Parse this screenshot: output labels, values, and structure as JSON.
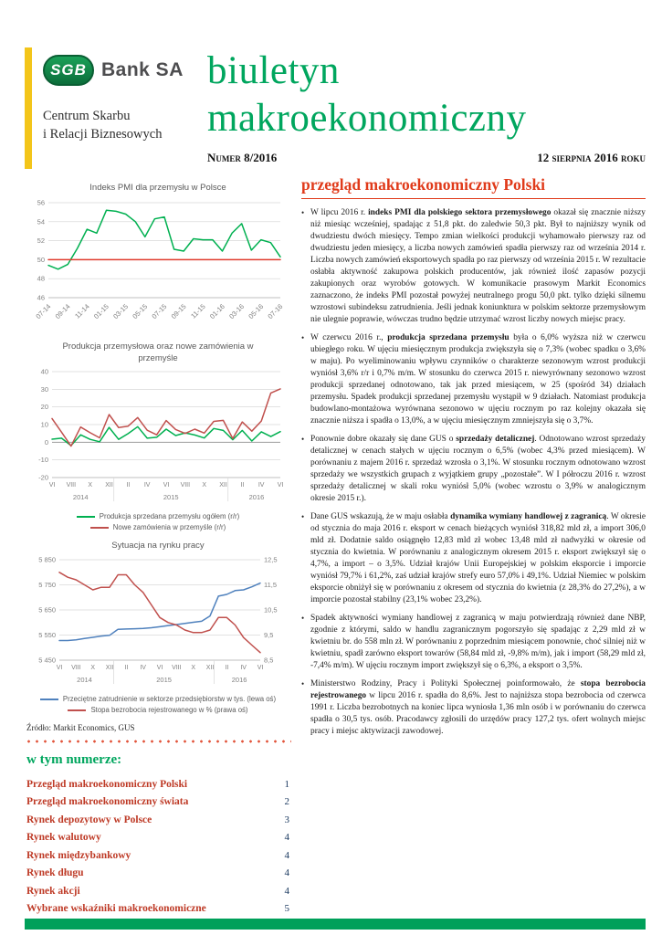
{
  "colors": {
    "brand_green": "#00A65E",
    "accent_red": "#E03A1A",
    "toc_red": "#BE3A26",
    "gold_bar": "#F3C51A",
    "chart_green": "#00B050",
    "chart_red": "#C0504D",
    "chart_blue": "#4F81BD"
  },
  "header": {
    "logo": {
      "sgb": "SGB",
      "bank": "Bank SA",
      "center_line1": "Centrum Skarbu",
      "center_line2": "i Relacji Biznesowych"
    },
    "title_line1": "biuletyn",
    "title_line2": "makroekonomiczny",
    "issue_label": "Numer 8/2016",
    "date_label": "12 sierpnia 2016 roku"
  },
  "left_column": {
    "source_note": "Źródło: Markit Economics, GUS"
  },
  "toc": {
    "heading": "w tym numerze:",
    "items": [
      {
        "label": "Przegląd makroekonomiczny Polski",
        "page": "1"
      },
      {
        "label": "Przegląd makroekonomiczny świata",
        "page": "2"
      },
      {
        "label": "Rynek depozytowy w Polsce",
        "page": "3"
      },
      {
        "label": "Rynek walutowy",
        "page": "4"
      },
      {
        "label": "Rynek międzybankowy",
        "page": "4"
      },
      {
        "label": "Rynek długu",
        "page": "4"
      },
      {
        "label": "Rynek akcji",
        "page": "4"
      },
      {
        "label": "Wybrane wskaźniki makroekonomiczne",
        "page": "5"
      }
    ]
  },
  "article": {
    "heading": "przegląd makroekonomiczny Polski",
    "bullets": [
      {
        "segments": [
          {
            "t": "W lipcu 2016 r. ",
            "b": false
          },
          {
            "t": "indeks PMI dla polskiego sektora przemysłowego",
            "b": true
          },
          {
            "t": " okazał się znacznie niższy niż miesiąc wcześniej, spadając z 51,8 pkt. do zaledwie 50,3 pkt. Był to najniższy wynik od dwudziestu dwóch miesięcy. Tempo zmian wielkości produkcji wyhamowało pierwszy raz od dwudziestu jeden miesięcy, a liczba nowych zamówień spadła pierwszy raz od września 2014 r. Liczba nowych zamówień eksportowych spadła po raz pierwszy od września 2015 r. W rezultacie osłabła aktywność zakupowa polskich producentów, jak również ilość zapasów pozycji zakupionych oraz wyrobów gotowych. W komunikacie prasowym Markit Economics zaznaczono, że indeks PMI pozostał powyżej neutralnego progu 50,0 pkt. tylko dzięki silnemu wzrostowi subindeksu zatrudnienia. Jeśli jednak koniunktura w polskim sektorze przemysłowym nie ulegnie poprawie, wówczas trudno będzie utrzymać wzrost liczby nowych miejsc pracy.",
            "b": false
          }
        ]
      },
      {
        "segments": [
          {
            "t": "W czerwcu 2016 r., ",
            "b": false
          },
          {
            "t": "produkcja sprzedana przemysłu",
            "b": true
          },
          {
            "t": " była o 6,0% wyższa niż w czerwcu ubiegłego roku. W ujęciu miesięcznym produkcja zwiększyła się o 7,3% (wobec spadku o 3,6% w maju). Po wyeliminowaniu wpływu czynników o charakterze sezonowym wzrost produkcji wyniósł 3,6% r/r i 0,7% m/m. W stosunku do czerwca 2015 r. niewyrównany sezonowo wzrost produkcji sprzedanej odnotowano, tak jak przed miesiącem, w 25 (spośród 34) działach przemysłu. Spadek produkcji sprzedanej przemysłu wystąpił w 9 działach. Natomiast produkcja budowlano-montażowa wyrównana sezonowo w ujęciu rocznym po raz kolejny okazała się znacznie niższa i spadła o 13,0%, a w ujęciu miesięcznym zmniejszyła się o 3,7%.",
            "b": false
          }
        ]
      },
      {
        "segments": [
          {
            "t": "Ponownie dobre okazały się dane GUS o ",
            "b": false
          },
          {
            "t": "sprzedaży detalicznej",
            "b": true
          },
          {
            "t": ". Odnotowano wzrost sprzedaży detalicznej w cenach stałych w ujęciu rocznym o 6,5% (wobec 4,3% przed miesiącem). W porównaniu z majem 2016 r. sprzedaż wzrosła o 3,1%. W stosunku rocznym odnotowano wzrost sprzedaży we wszystkich grupach z wyjątkiem grupy „pozostałe”. W I półroczu 2016 r. wzrost sprzedaży detalicznej w skali roku wyniósł 5,0% (wobec wzrostu o 3,9% w analogicznym okresie 2015 r.).",
            "b": false
          }
        ]
      },
      {
        "segments": [
          {
            "t": "Dane GUS wskazują, że w maju osłabła ",
            "b": false
          },
          {
            "t": "dynamika wymiany handlowej z zagranicą",
            "b": true
          },
          {
            "t": ". W okresie od stycznia do maja 2016 r. eksport w cenach bieżących wyniósł 318,82 mld zł, a import 306,0 mld zł. Dodatnie saldo osiągnęło 12,83 mld zł wobec 13,48 mld zł nadwyżki w okresie od stycznia do kwietnia. W porównaniu z analogicznym okresem 2015 r. eksport zwiększył się o 4,7%, a import – o 3,5%. Udział krajów Unii Europejskiej w polskim eksporcie i imporcie wyniósł 79,7% i 61,2%, zaś udział krajów strefy euro 57,0% i 49,1%. Udział Niemiec w polskim eksporcie obniżył się w porównaniu z okresem od stycznia do kwietnia (z 28,3% do 27,2%), a w imporcie pozostał stabilny (23,1% wobec 23,2%).",
            "b": false
          }
        ]
      },
      {
        "segments": [
          {
            "t": "Spadek aktywności wymiany handlowej z zagranicą w maju potwierdzają również dane NBP, zgodnie z którymi, saldo w handlu zagranicznym pogorszyło się spadając z 2,29 mld zł w kwietniu br. do 558 mln zł. W porównaniu z poprzednim miesiącem ponownie, choć silniej niż w kwietniu, spadł zarówno eksport towarów (58,84 mld zł, -9,8% m/m), jak i import (58,29 mld zł, -7,4% m/m). W ujęciu rocznym import zwiększył się o 6,3%, a eksport o 3,5%.",
            "b": false
          }
        ]
      },
      {
        "segments": [
          {
            "t": "Ministerstwo Rodziny, Pracy i Polityki Społecznej poinformowało, że ",
            "b": false
          },
          {
            "t": "stopa bezrobocia rejestrowanego",
            "b": true
          },
          {
            "t": " w lipcu 2016 r. spadła do 8,6%. Jest to najniższa stopa bezrobocia od czerwca 1991 r. Liczba bezrobotnych na koniec lipca wyniosła 1,36 mln osób i w porównaniu do czerwca spadła o 30,5 tys. osób. Pracodawcy zgłosili do urzędów pracy 127,2 tys. ofert wolnych miejsc pracy i miejsc aktywizacji zawodowej.",
            "b": false
          }
        ]
      }
    ]
  },
  "chart_data": [
    {
      "type": "line",
      "title": "Indeks PMI dla przemysłu w Polsce",
      "x_labels": [
        "07-14",
        "09-14",
        "11-14",
        "01-15",
        "03-15",
        "05-15",
        "07-15",
        "09-15",
        "11-15",
        "01-16",
        "03-16",
        "05-16",
        "07-16"
      ],
      "x_label_indices": [
        0,
        2,
        4,
        6,
        8,
        10,
        12,
        14,
        16,
        18,
        20,
        22,
        24
      ],
      "y_axis": {
        "min": 46,
        "max": 56,
        "ticks": [
          "46",
          "48",
          "50",
          "52",
          "54",
          "56"
        ]
      },
      "legend": false,
      "series": [
        {
          "name": "Indeks PMI dla przemysłu w Polsce",
          "color": "#00B050",
          "axis": "y",
          "values": [
            49.4,
            49.0,
            49.5,
            51.2,
            53.2,
            52.8,
            55.2,
            55.1,
            54.8,
            54.0,
            52.4,
            54.3,
            54.5,
            51.1,
            50.9,
            52.2,
            52.1,
            52.1,
            50.9,
            52.8,
            53.8,
            51.0,
            52.1,
            51.8,
            50.3
          ]
        },
        {
          "name": "linia odniesienia 50 pkt.",
          "color": "#E03C2D",
          "axis": "y",
          "values": [
            50,
            50,
            50,
            50,
            50,
            50,
            50,
            50,
            50,
            50,
            50,
            50,
            50,
            50,
            50,
            50,
            50,
            50,
            50,
            50,
            50,
            50,
            50,
            50,
            50
          ]
        }
      ]
    },
    {
      "type": "line",
      "title": "Produkcja przemysłowa oraz nowe zamówienia w przemyśle",
      "x_labels": [
        "VI",
        "VIII",
        "X",
        "XII",
        "II",
        "IV",
        "VI",
        "VIII",
        "X",
        "XII",
        "II",
        "IV",
        "VI"
      ],
      "x_label_indices": [
        0,
        2,
        4,
        6,
        8,
        10,
        12,
        14,
        16,
        18,
        20,
        22,
        24
      ],
      "year_groups": [
        {
          "label": "2014",
          "center_index": 3
        },
        {
          "label": "2015",
          "center_index": 12.5
        },
        {
          "label": "2016",
          "center_index": 21.5
        }
      ],
      "year_separator_indices": [
        6.5,
        18.5
      ],
      "y_axis": {
        "min": -20,
        "max": 40,
        "ticks": [
          "-20",
          "-10",
          "0",
          "10",
          "20",
          "30",
          "40"
        ]
      },
      "zero_line": true,
      "legend": true,
      "series": [
        {
          "name": "Produkcja sprzedana przemysłu ogółem (r/r)",
          "color": "#00B050",
          "axis": "y",
          "values": [
            1.7,
            2.3,
            -1.9,
            4.2,
            1.6,
            0.3,
            8.4,
            1.6,
            4.9,
            8.8,
            2.3,
            2.8,
            7.4,
            3.8,
            5.3,
            4.1,
            2.4,
            7.8,
            6.7,
            1.4,
            6.7,
            0.7,
            5.9,
            3.2,
            6.0
          ]
        },
        {
          "name": "Nowe zamówienia w przemyśle (r/r)",
          "color": "#C0504D",
          "axis": "y",
          "values": [
            13.4,
            5.7,
            -2.2,
            8.6,
            5.4,
            2.5,
            15.7,
            8.3,
            9.1,
            14.0,
            6.8,
            4.2,
            12.3,
            7.2,
            5.0,
            7.4,
            5.2,
            11.8,
            12.4,
            2.1,
            11.5,
            6.3,
            12.0,
            27.9,
            30.2
          ]
        }
      ]
    },
    {
      "type": "line",
      "title": "Sytuacja na rynku pracy",
      "x_labels": [
        "VI",
        "VIII",
        "X",
        "XII",
        "II",
        "IV",
        "VI",
        "VIII",
        "X",
        "XII",
        "II",
        "IV",
        "VI"
      ],
      "x_label_indices": [
        0,
        2,
        4,
        6,
        8,
        10,
        12,
        14,
        16,
        18,
        20,
        22,
        24
      ],
      "year_groups": [
        {
          "label": "2014",
          "center_index": 3
        },
        {
          "label": "2015",
          "center_index": 12.5
        },
        {
          "label": "2016",
          "center_index": 21.5
        }
      ],
      "year_separator_indices": [
        6.5,
        18.5
      ],
      "y_axis": {
        "min": 5450,
        "max": 5850,
        "ticks": [
          "5 450",
          "5 550",
          "5 650",
          "5 750",
          "5 850"
        ]
      },
      "y2_axis": {
        "min": 8.5,
        "max": 12.5,
        "ticks": [
          "8,5",
          "9,5",
          "10,5",
          "11,5",
          "12,5"
        ]
      },
      "legend": true,
      "series": [
        {
          "name": "Przeciętne zatrudnienie w sektorze przedsiębiorstw w tys. (lewa oś)",
          "color": "#4F81BD",
          "axis": "y",
          "values": [
            5528,
            5528,
            5531,
            5536,
            5541,
            5546,
            5549,
            5573,
            5574,
            5575,
            5576,
            5579,
            5583,
            5588,
            5592,
            5596,
            5601,
            5605,
            5626,
            5705,
            5712,
            5727,
            5730,
            5742,
            5757
          ]
        },
        {
          "name": "Stopa bezrobocia rejestrowanego w % (prawa oś)",
          "color": "#C0504D",
          "axis": "y2",
          "values": [
            12.0,
            11.8,
            11.7,
            11.5,
            11.3,
            11.4,
            11.4,
            11.9,
            11.9,
            11.5,
            11.2,
            10.7,
            10.2,
            10.0,
            9.9,
            9.7,
            9.6,
            9.6,
            9.7,
            10.2,
            10.2,
            9.9,
            9.4,
            9.1,
            8.8
          ]
        }
      ]
    }
  ]
}
